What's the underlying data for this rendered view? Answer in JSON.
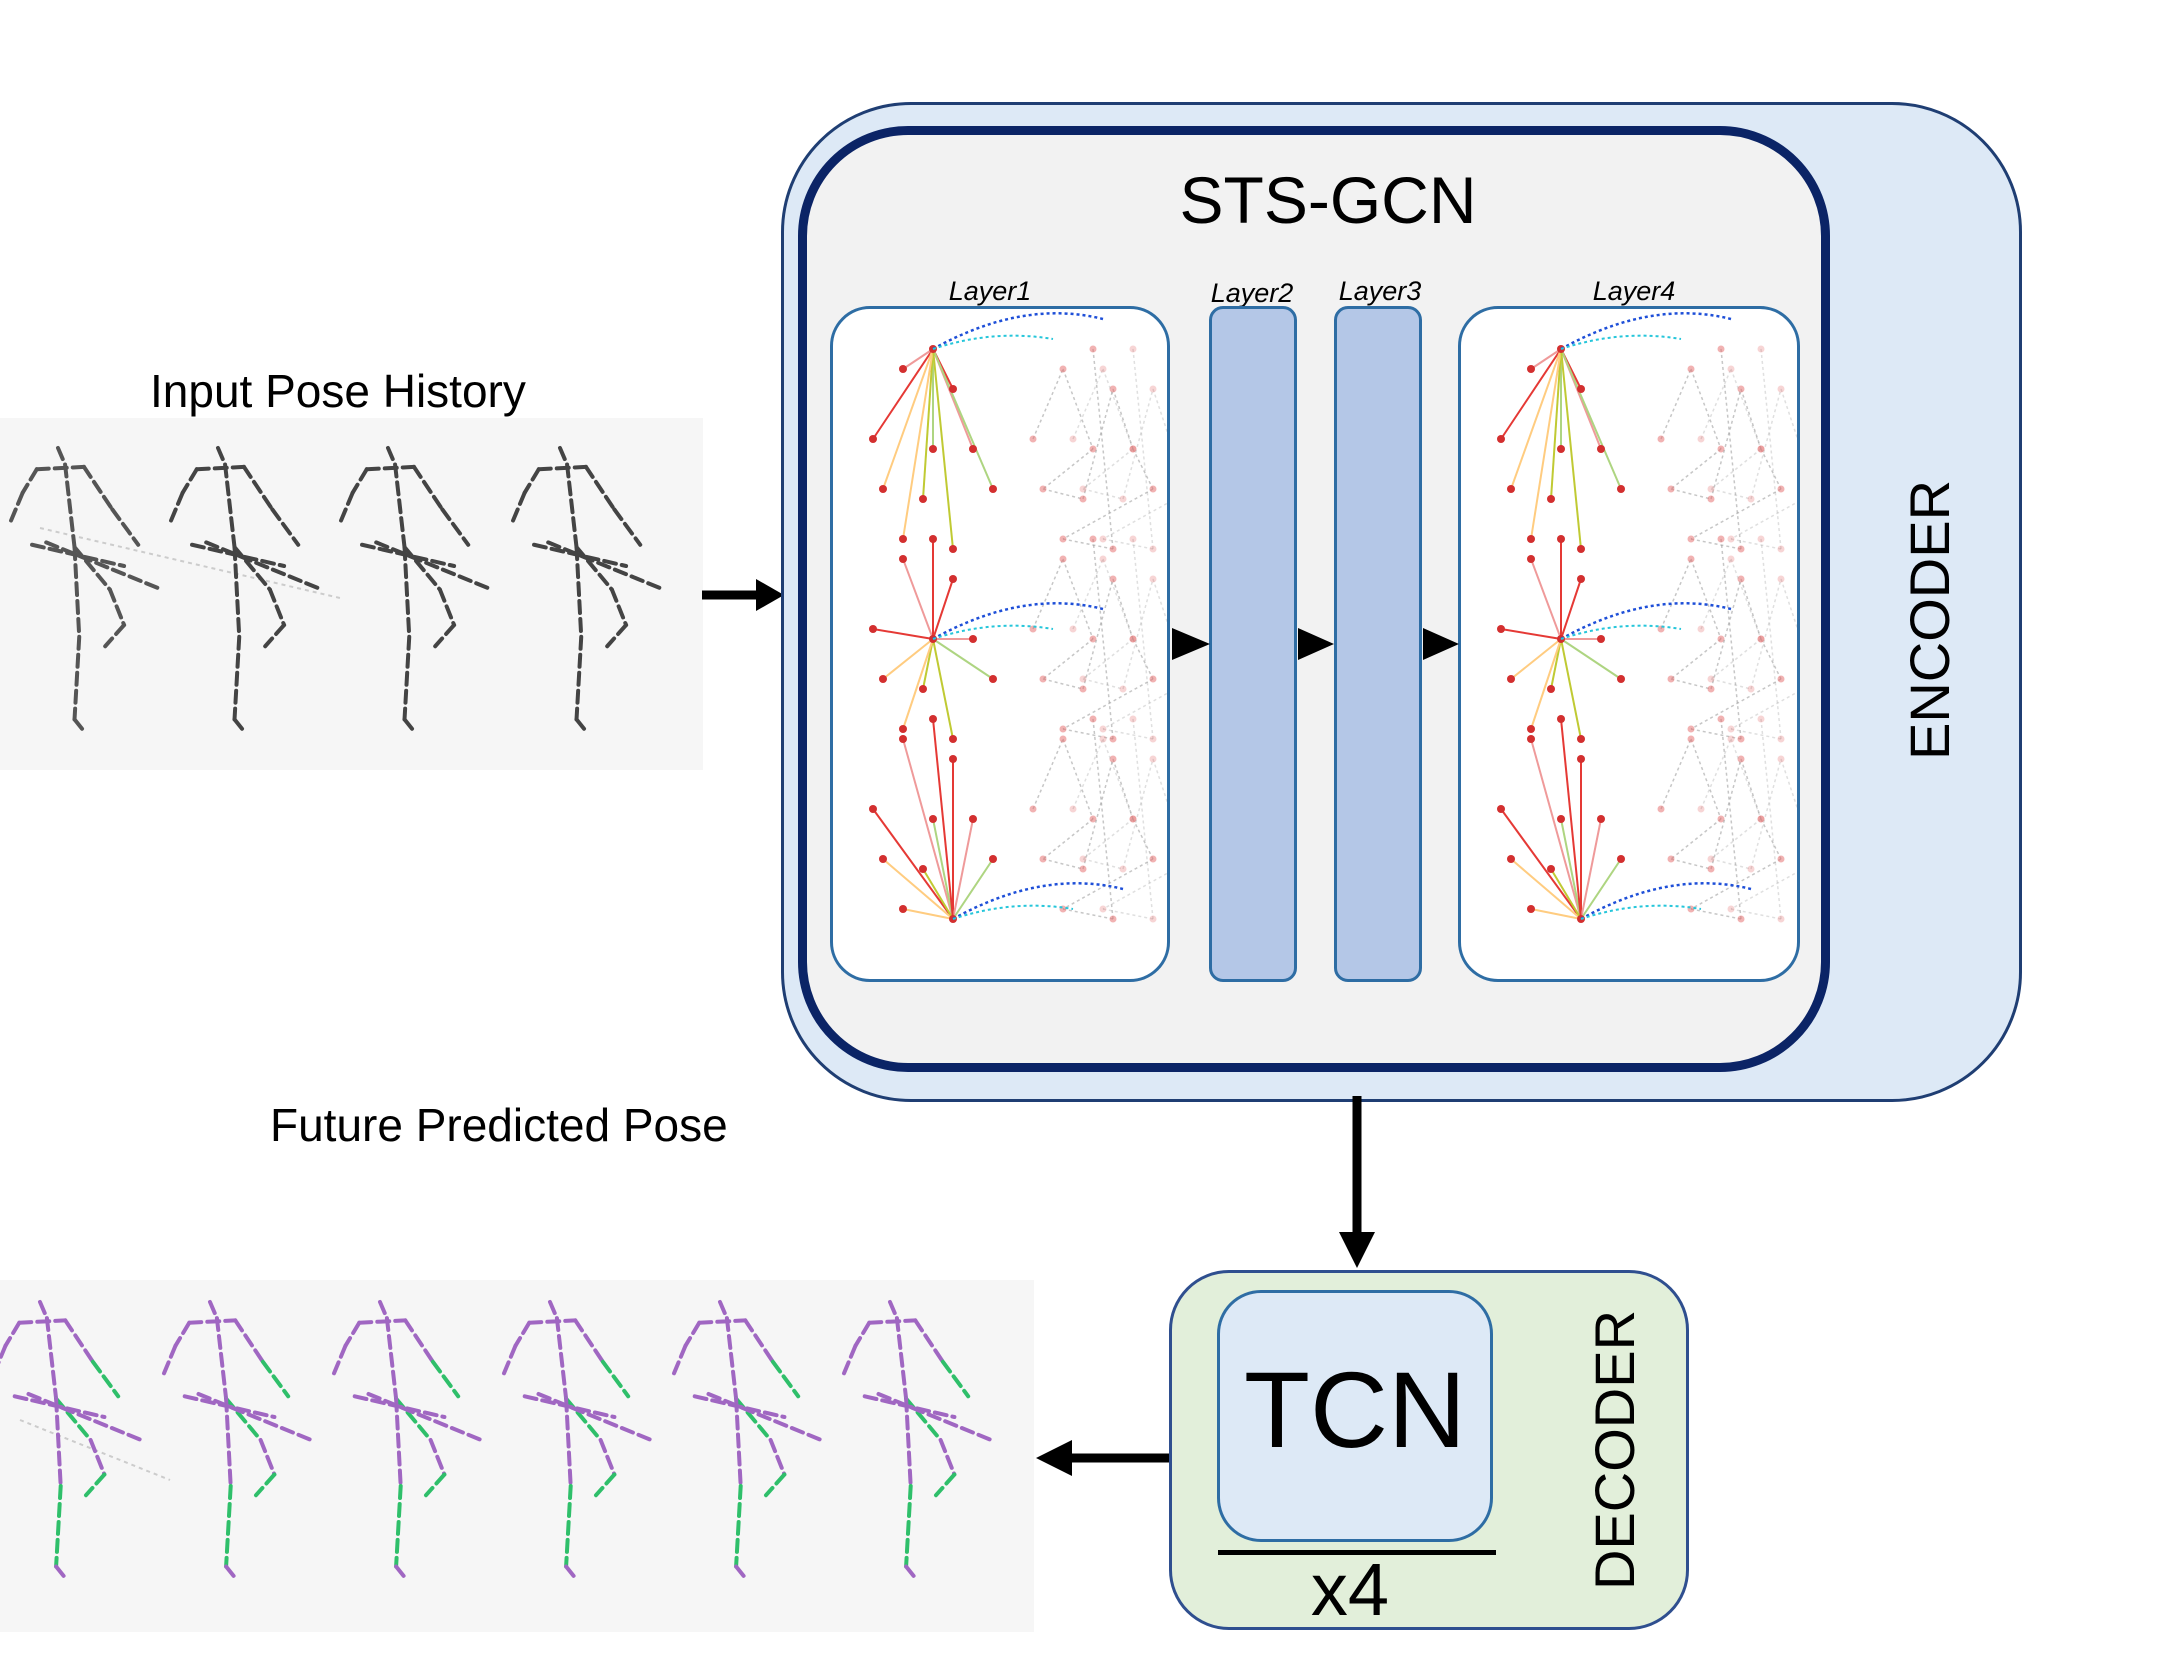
{
  "input": {
    "title": "Input Pose History"
  },
  "output": {
    "title": "Future Predicted Pose"
  },
  "encoder": {
    "label": "ENCODER",
    "block_title": "STS-GCN",
    "layers": [
      "Layer1",
      "Layer2",
      "Layer3",
      "Layer4"
    ]
  },
  "decoder": {
    "label": "DECODER",
    "block_title": "TCN",
    "repeat": "x4"
  },
  "colors": {
    "encoder_fill": "#dde9f6",
    "encoder_border": "#0b2466",
    "decoder_fill": "#e2efda",
    "layer_bar": "#b4c7e7",
    "prediction_purple": "#a067c2",
    "prediction_green": "#2fbf6a",
    "input_pose": "#3a3a3a"
  }
}
